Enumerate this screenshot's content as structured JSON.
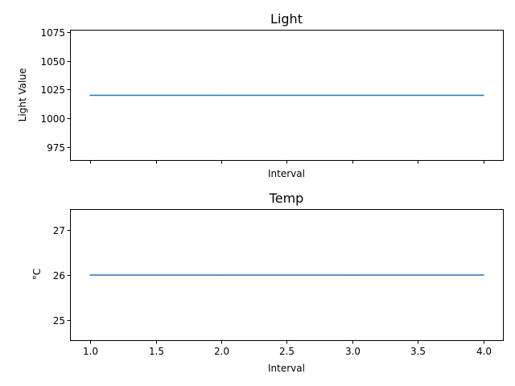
{
  "chart_data": [
    {
      "type": "line",
      "title": "Light",
      "xlabel": "Interval",
      "ylabel": "Light Value",
      "x": [
        1,
        2,
        3,
        4
      ],
      "series": [
        {
          "values": [
            1020,
            1020,
            1020,
            1020
          ],
          "color": "#1f77b4"
        }
      ],
      "xlim": [
        0.85,
        4.15
      ],
      "ylim": [
        963.5,
        1076.5
      ],
      "xticks": [
        1.0,
        1.5,
        2.0,
        2.5,
        3.0,
        3.5,
        4.0
      ],
      "xtick_labels_visible": false,
      "yticks": [
        975,
        1000,
        1025,
        1050,
        1075
      ],
      "ytick_labels": [
        "975",
        "1000",
        "1025",
        "1050",
        "1075"
      ],
      "grid": false,
      "legend": false
    },
    {
      "type": "line",
      "title": "Temp",
      "xlabel": "Interval",
      "ylabel": "°C",
      "x": [
        1,
        2,
        3,
        4
      ],
      "series": [
        {
          "values": [
            26,
            26,
            26,
            26
          ],
          "color": "#1f77b4"
        }
      ],
      "xlim": [
        0.85,
        4.15
      ],
      "ylim": [
        24.55,
        27.45
      ],
      "xticks": [
        1.0,
        1.5,
        2.0,
        2.5,
        3.0,
        3.5,
        4.0
      ],
      "xtick_labels": [
        "1.0",
        "1.5",
        "2.0",
        "2.5",
        "3.0",
        "3.5",
        "4.0"
      ],
      "xtick_labels_visible": true,
      "yticks": [
        25,
        26,
        27
      ],
      "ytick_labels": [
        "25",
        "26",
        "27"
      ],
      "grid": false,
      "legend": false
    }
  ]
}
